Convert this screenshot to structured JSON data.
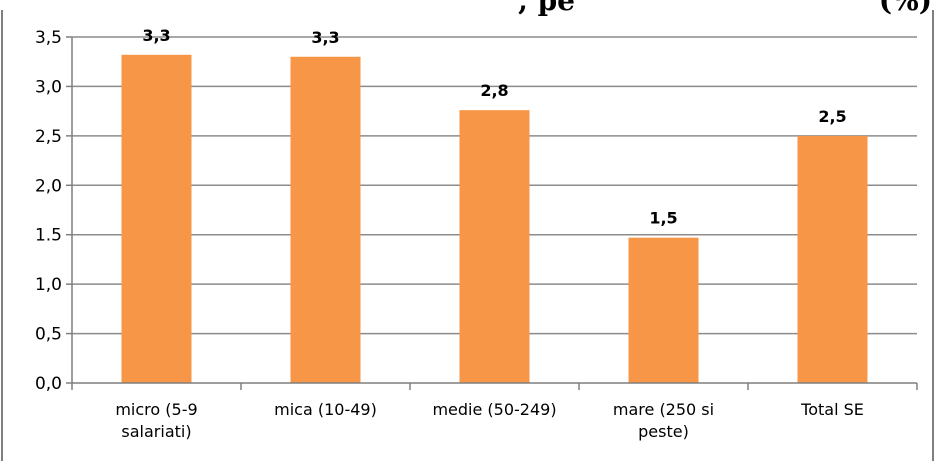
{
  "chart_data": {
    "type": "bar",
    "title": ", pe",
    "title_right": "(%)",
    "categories": [
      [
        "micro (5-9",
        "salariati)"
      ],
      [
        "mica (10-49)"
      ],
      [
        "medie (50-249)"
      ],
      [
        "mare (250 si",
        "peste)"
      ],
      [
        "Total SE"
      ]
    ],
    "values": [
      3.32,
      3.3,
      2.76,
      1.47,
      2.5
    ],
    "data_labels": [
      "3,3",
      "3,3",
      "2,8",
      "1,5",
      "2,5"
    ],
    "y_ticks": [
      {
        "value": 0.0,
        "label": "0,0"
      },
      {
        "value": 0.5,
        "label": "0,5"
      },
      {
        "value": 1.0,
        "label": "1,0"
      },
      {
        "value": 1.5,
        "label": "1.5"
      },
      {
        "value": 2.0,
        "label": "2,0"
      },
      {
        "value": 2.5,
        "label": "2,5"
      },
      {
        "value": 3.0,
        "label": "3,0"
      },
      {
        "value": 3.5,
        "label": "3,5"
      }
    ],
    "ylim": [
      0,
      3.5
    ],
    "grid": true,
    "legend": "none",
    "bar_color": "#F79646",
    "grid_color": "#8C8C8C",
    "frame_color": "#7F7F7F"
  }
}
